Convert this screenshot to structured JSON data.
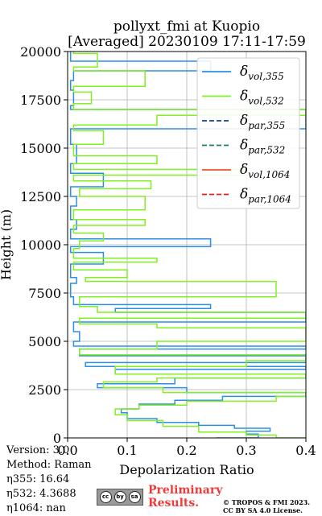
{
  "chart_data": {
    "type": "line",
    "title": "pollyxt_fmi at Kuopio",
    "subtitle": "[Averaged] 20230109 17:11-17:59",
    "xlabel": "Depolarization Ratio",
    "ylabel": "Height (m)",
    "xlim": [
      0,
      0.4
    ],
    "ylim": [
      0,
      20000
    ],
    "xticks": [
      "0.0",
      "0.1",
      "0.2",
      "0.3",
      "0.4"
    ],
    "yticks": [
      "0",
      "2500",
      "5000",
      "7500",
      "10000",
      "12500",
      "15000",
      "17500",
      "20000"
    ],
    "grid": true,
    "legend_position": "top-right",
    "legend": [
      {
        "base": "δ",
        "sub": "vol,355",
        "color": "#2b8fe8",
        "dash": "solid"
      },
      {
        "base": "δ",
        "sub": "vol,532",
        "color": "#80f020",
        "dash": "solid"
      },
      {
        "base": "δ",
        "sub": "par,355",
        "color": "#1040a0",
        "dash": "dashed"
      },
      {
        "base": "δ",
        "sub": "par,532",
        "color": "#1a8050",
        "dash": "dashed"
      },
      {
        "base": "δ",
        "sub": "vol,1064",
        "color": "#f05030",
        "dash": "solid"
      },
      {
        "base": "δ",
        "sub": "par,1064",
        "color": "#e02020",
        "dash": "dashed"
      }
    ],
    "series": [
      {
        "name": "δvol,355",
        "color": "#2b8fe8",
        "points": [
          [
            0.25,
            0
          ],
          [
            0.32,
            200
          ],
          [
            0.3,
            350
          ],
          [
            0.34,
            500
          ],
          [
            0.28,
            650
          ],
          [
            0.22,
            800
          ],
          [
            0.15,
            1000
          ],
          [
            0.1,
            1300
          ],
          [
            0.09,
            1500
          ],
          [
            0.12,
            1750
          ],
          [
            0.18,
            1950
          ],
          [
            0.26,
            2150
          ],
          [
            0.4,
            2350
          ],
          [
            0.2,
            2600
          ],
          [
            0.05,
            2800
          ],
          [
            0.18,
            3100
          ],
          [
            0.4,
            3300
          ],
          [
            0.08,
            3550
          ],
          [
            0.4,
            3700
          ],
          [
            0.03,
            3900
          ],
          [
            0.4,
            4250
          ],
          [
            0.02,
            4600
          ],
          [
            0.4,
            4750
          ],
          [
            0.01,
            5000
          ],
          [
            0.02,
            5500
          ],
          [
            0.01,
            6000
          ],
          [
            0.4,
            6500
          ],
          [
            0.08,
            6700
          ],
          [
            0.24,
            6900
          ],
          [
            0.01,
            7300
          ],
          [
            0.005,
            8000
          ],
          [
            0.015,
            8300
          ],
          [
            0.005,
            9000
          ],
          [
            0.06,
            9600
          ],
          [
            0.005,
            9900
          ],
          [
            0.24,
            10300
          ],
          [
            0.005,
            10800
          ],
          [
            0.015,
            11300
          ],
          [
            0.005,
            12000
          ],
          [
            0.015,
            12500
          ],
          [
            0.005,
            13000
          ],
          [
            0.06,
            13700
          ],
          [
            0.005,
            14200
          ],
          [
            0.015,
            15200
          ],
          [
            0.005,
            16000
          ],
          [
            0.4,
            17000
          ],
          [
            0.005,
            17200
          ],
          [
            0.01,
            18000
          ],
          [
            0.005,
            18500
          ],
          [
            0.01,
            19000
          ],
          [
            0.24,
            19500
          ],
          [
            0.005,
            20000
          ]
        ]
      },
      {
        "name": "δvol,532",
        "color": "#80f020",
        "points": [
          [
            0.4,
            0
          ],
          [
            0.35,
            150
          ],
          [
            0.3,
            300
          ],
          [
            0.22,
            600
          ],
          [
            0.16,
            900
          ],
          [
            0.1,
            1200
          ],
          [
            0.08,
            1500
          ],
          [
            0.12,
            1700
          ],
          [
            0.2,
            1900
          ],
          [
            0.35,
            2150
          ],
          [
            0.4,
            2350
          ],
          [
            0.16,
            2600
          ],
          [
            0.06,
            2900
          ],
          [
            0.15,
            3100
          ],
          [
            0.4,
            3300
          ],
          [
            0.08,
            3700
          ],
          [
            0.3,
            4000
          ],
          [
            0.4,
            4300
          ],
          [
            0.02,
            4600
          ],
          [
            0.15,
            5000
          ],
          [
            0.4,
            5700
          ],
          [
            0.15,
            5900
          ],
          [
            0.02,
            6200
          ],
          [
            0.4,
            6500
          ],
          [
            0.05,
            6800
          ],
          [
            0.02,
            7300
          ],
          [
            0.35,
            8100
          ],
          [
            0.03,
            8300
          ],
          [
            0.1,
            8700
          ],
          [
            0.01,
            9100
          ],
          [
            0.15,
            9300
          ],
          [
            0.01,
            9800
          ],
          [
            0.02,
            10200
          ],
          [
            0.06,
            10600
          ],
          [
            0.01,
            11000
          ],
          [
            0.13,
            11300
          ],
          [
            0.01,
            11800
          ],
          [
            0.13,
            12500
          ],
          [
            0.02,
            12900
          ],
          [
            0.14,
            13300
          ],
          [
            0.01,
            13600
          ],
          [
            0.3,
            13900
          ],
          [
            0.01,
            14200
          ],
          [
            0.15,
            14600
          ],
          [
            0.01,
            15200
          ],
          [
            0.06,
            15900
          ],
          [
            0.01,
            16200
          ],
          [
            0.15,
            16700
          ],
          [
            0.4,
            17000
          ],
          [
            0.01,
            17300
          ],
          [
            0.04,
            17900
          ],
          [
            0.01,
            18200
          ],
          [
            0.13,
            19000
          ],
          [
            0.01,
            19200
          ],
          [
            0.05,
            19900
          ],
          [
            0.01,
            20000
          ]
        ]
      }
    ]
  },
  "meta": {
    "version": "Version: 3.0",
    "method": "Method: Raman",
    "eta355": "η355:  16.64",
    "eta532": "η532: 4.3688",
    "eta1064": "η1064:    nan"
  },
  "footer": {
    "badge_glyphs": [
      "cc",
      "by",
      "sa"
    ],
    "preliminary_line1": "Preliminary",
    "preliminary_line2": "Results.",
    "copyright_line1": "© TROPOS & FMI 2023.",
    "copyright_line2": "CC BY SA 4.0 License."
  }
}
